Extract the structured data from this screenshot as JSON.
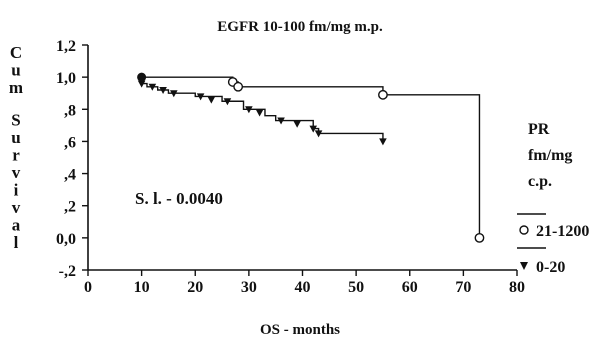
{
  "chart_data": {
    "type": "line",
    "title": "EGFR 10-100 fm/mg m.p.",
    "xlabel": "OS - months",
    "ylabel": "Cum Survival",
    "xlim": [
      0,
      80
    ],
    "ylim": [
      -0.2,
      1.2
    ],
    "xticks": [
      "0",
      "10",
      "20",
      "30",
      "40",
      "50",
      "60",
      "70",
      "80"
    ],
    "yticks": [
      "1,2",
      "1,0",
      ",8",
      ",6",
      ",4",
      ",2",
      "0,0",
      "-,2"
    ],
    "ytick_values": [
      1.2,
      1.0,
      0.8,
      0.6,
      0.4,
      0.2,
      0.0,
      -0.2
    ],
    "xtick_values": [
      0,
      10,
      20,
      30,
      40,
      50,
      60,
      70,
      80
    ],
    "annotation": "S. l. - 0.0040",
    "legend_title": [
      "PR",
      "fm/mg",
      "c.p."
    ],
    "series": [
      {
        "name": "21-1200",
        "marker": "circle",
        "steps": [
          [
            0,
            1.0
          ],
          [
            10,
            1.0
          ],
          [
            27,
            0.97
          ],
          [
            28,
            0.94
          ],
          [
            55,
            0.89
          ],
          [
            73,
            0.0
          ]
        ],
        "censored": [
          [
            27,
            0.97
          ],
          [
            28,
            0.94
          ],
          [
            55,
            0.89
          ],
          [
            73,
            0.0
          ]
        ]
      },
      {
        "name": "0-20",
        "marker": "triangle-down",
        "steps": [
          [
            0,
            1.0
          ],
          [
            10,
            0.96
          ],
          [
            11,
            0.94
          ],
          [
            13,
            0.92
          ],
          [
            15,
            0.9
          ],
          [
            20,
            0.88
          ],
          [
            25,
            0.85
          ],
          [
            29,
            0.8
          ],
          [
            33,
            0.76
          ],
          [
            35,
            0.73
          ],
          [
            42,
            0.68
          ],
          [
            43,
            0.65
          ],
          [
            55,
            0.6
          ]
        ],
        "censored": [
          [
            10,
            0.96
          ],
          [
            12,
            0.94
          ],
          [
            14,
            0.92
          ],
          [
            16,
            0.9
          ],
          [
            21,
            0.88
          ],
          [
            23,
            0.86
          ],
          [
            26,
            0.85
          ],
          [
            30,
            0.8
          ],
          [
            32,
            0.78
          ],
          [
            36,
            0.73
          ],
          [
            39,
            0.71
          ],
          [
            42,
            0.68
          ],
          [
            43,
            0.65
          ],
          [
            55,
            0.6
          ]
        ]
      }
    ],
    "start_marker": [
      10,
      1.0
    ]
  }
}
